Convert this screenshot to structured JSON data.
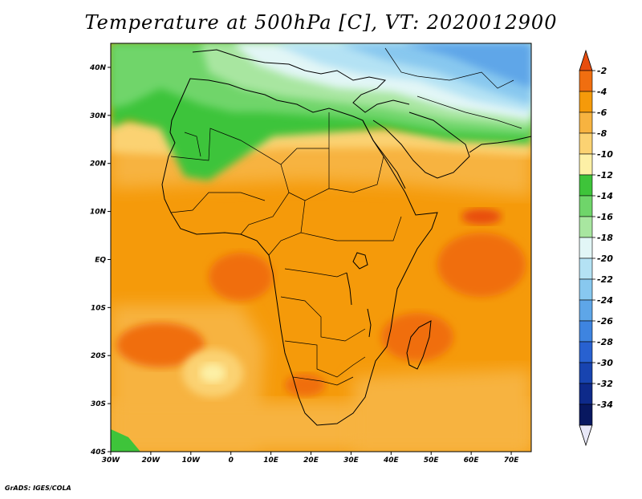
{
  "title": "Temperature at 500hPa [C], VT: 2020012900",
  "credit": "GrADS: IGES/COLA",
  "map": {
    "lon_range": [
      -30,
      75
    ],
    "lat_range": [
      -40,
      45
    ],
    "lat_ticks": [
      {
        "value": 40,
        "label": "40N"
      },
      {
        "value": 30,
        "label": "30N"
      },
      {
        "value": 20,
        "label": "20N"
      },
      {
        "value": 10,
        "label": "10N"
      },
      {
        "value": 0,
        "label": "EQ"
      },
      {
        "value": -10,
        "label": "10S"
      },
      {
        "value": -20,
        "label": "20S"
      },
      {
        "value": -30,
        "label": "30S"
      },
      {
        "value": -40,
        "label": "40S"
      }
    ],
    "lon_ticks": [
      {
        "value": -30,
        "label": "30W"
      },
      {
        "value": -20,
        "label": "20W"
      },
      {
        "value": -10,
        "label": "10W"
      },
      {
        "value": 0,
        "label": "0"
      },
      {
        "value": 10,
        "label": "10E"
      },
      {
        "value": 20,
        "label": "20E"
      },
      {
        "value": 30,
        "label": "30E"
      },
      {
        "value": 40,
        "label": "40E"
      },
      {
        "value": 50,
        "label": "50E"
      },
      {
        "value": 60,
        "label": "60E"
      },
      {
        "value": 70,
        "label": "70E"
      }
    ]
  },
  "colorbar": {
    "labels": [
      "-2",
      "-4",
      "-6",
      "-8",
      "-10",
      "-12",
      "-14",
      "-16",
      "-18",
      "-20",
      "-22",
      "-24",
      "-26",
      "-28",
      "-30",
      "-32",
      "-34"
    ],
    "colors": [
      "#e84d0e",
      "#f06e10",
      "#f59a0a",
      "#f7b340",
      "#fbd272",
      "#fdf0a6",
      "#3ec43a",
      "#6fd56a",
      "#a8e6a0",
      "#e2f6f6",
      "#b4e2f4",
      "#88c8ef",
      "#5ea6e8",
      "#3e84e0",
      "#2861d0",
      "#1844b0",
      "#0e2a8a",
      "#081860",
      "#e8e8f8"
    ]
  }
}
